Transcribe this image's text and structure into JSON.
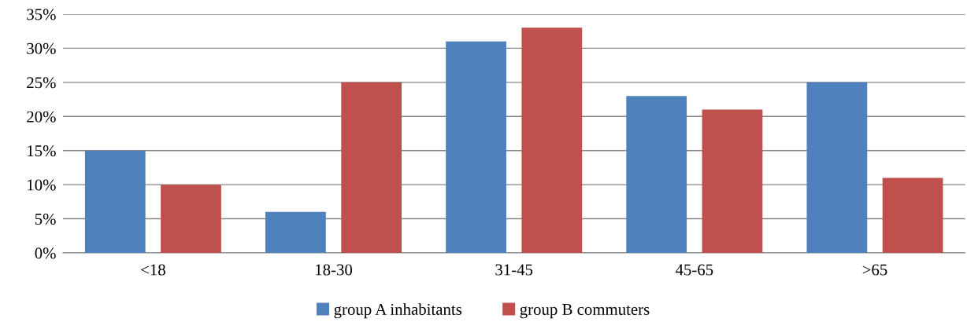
{
  "chart_data": {
    "type": "bar",
    "categories": [
      "<18",
      "18-30",
      "31-45",
      "45-65",
      ">65"
    ],
    "series": [
      {
        "name": "group A inhabitants",
        "color": "#4f81bd",
        "values": [
          15,
          6,
          31,
          23,
          25
        ]
      },
      {
        "name": "group B commuters",
        "color": "#c0504d",
        "values": [
          10,
          25,
          33,
          21,
          11
        ]
      }
    ],
    "ylim": [
      0,
      35
    ],
    "yticks": [
      {
        "value": 0,
        "label": "0%"
      },
      {
        "value": 5,
        "label": "5%"
      },
      {
        "value": 10,
        "label": "10%"
      },
      {
        "value": 15,
        "label": "15%"
      },
      {
        "value": 20,
        "label": "20%"
      },
      {
        "value": 25,
        "label": "25%"
      },
      {
        "value": 30,
        "label": "30%"
      },
      {
        "value": 35,
        "label": "35%"
      }
    ],
    "grid": "y",
    "legend": "bottom"
  }
}
